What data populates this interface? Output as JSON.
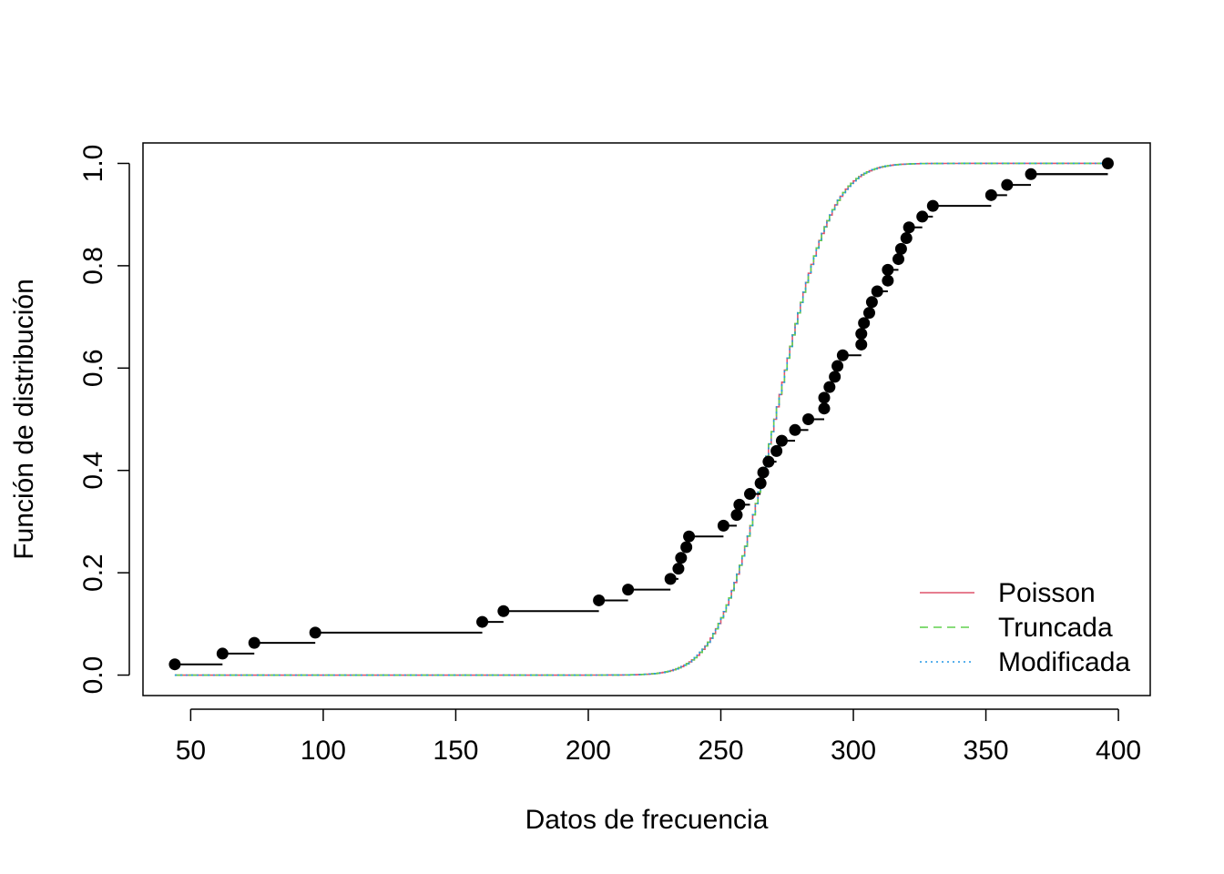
{
  "chart_data": {
    "type": "line",
    "xlabel": "Datos de frecuencia",
    "ylabel": "Función de distribución",
    "xlim": [
      32,
      412
    ],
    "ylim": [
      -0.04,
      1.04
    ],
    "x_ticks": [
      50,
      100,
      150,
      200,
      250,
      300,
      350,
      400
    ],
    "y_ticks": [
      0.0,
      0.2,
      0.4,
      0.6,
      0.8,
      1.0
    ],
    "x_tick_labels": [
      "50",
      "100",
      "150",
      "200",
      "250",
      "300",
      "350",
      "400"
    ],
    "y_tick_labels": [
      "0.0",
      "0.2",
      "0.4",
      "0.6",
      "0.8",
      "1.0"
    ],
    "grid": false,
    "legend_position": "bottom-right",
    "empirical": {
      "color": "#000000",
      "points": [
        [
          44,
          0.021
        ],
        [
          62,
          0.042
        ],
        [
          74,
          0.063
        ],
        [
          97,
          0.083
        ],
        [
          160,
          0.104
        ],
        [
          168,
          0.125
        ],
        [
          204,
          0.146
        ],
        [
          215,
          0.167
        ],
        [
          231,
          0.188
        ],
        [
          234,
          0.208
        ],
        [
          235,
          0.229
        ],
        [
          237,
          0.25
        ],
        [
          238,
          0.271
        ],
        [
          251,
          0.292
        ],
        [
          256,
          0.313
        ],
        [
          257,
          0.333
        ],
        [
          261,
          0.354
        ],
        [
          265,
          0.375
        ],
        [
          266,
          0.396
        ],
        [
          268,
          0.417
        ],
        [
          271,
          0.438
        ],
        [
          273,
          0.458
        ],
        [
          278,
          0.479
        ],
        [
          283,
          0.5
        ],
        [
          289,
          0.521
        ],
        [
          289,
          0.542
        ],
        [
          291,
          0.563
        ],
        [
          293,
          0.583
        ],
        [
          294,
          0.604
        ],
        [
          296,
          0.625
        ],
        [
          303,
          0.646
        ],
        [
          303,
          0.667
        ],
        [
          304,
          0.688
        ],
        [
          306,
          0.708
        ],
        [
          307,
          0.729
        ],
        [
          309,
          0.75
        ],
        [
          313,
          0.771
        ],
        [
          313,
          0.792
        ],
        [
          317,
          0.813
        ],
        [
          318,
          0.833
        ],
        [
          320,
          0.854
        ],
        [
          321,
          0.875
        ],
        [
          326,
          0.896
        ],
        [
          330,
          0.917
        ],
        [
          352,
          0.938
        ],
        [
          358,
          0.958
        ],
        [
          367,
          0.979
        ],
        [
          396,
          1.0
        ]
      ]
    },
    "series": [
      {
        "name": "Poisson",
        "color": "#DF536B",
        "dash": "solid"
      },
      {
        "name": "Truncada",
        "color": "#61D04F",
        "dash": "dashed"
      },
      {
        "name": "Modificada",
        "color": "#2297E6",
        "dash": "dotted"
      }
    ],
    "model_cdf": {
      "x_range": [
        44,
        396
      ],
      "poisson_mean": 270.5
    }
  }
}
